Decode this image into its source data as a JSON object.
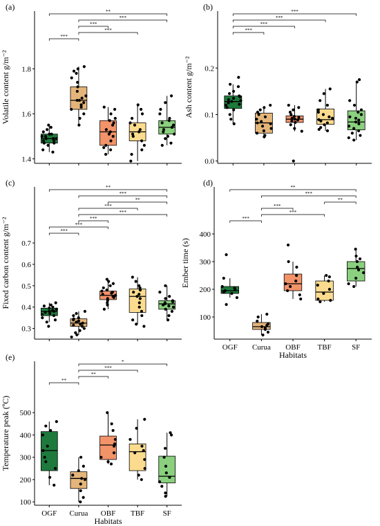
{
  "colors": {
    "OGF": "#1e7a3c",
    "Curua": "#e4b57a",
    "OBF": "#f2936a",
    "TBF": "#fbdc8f",
    "SF": "#8ad07e"
  },
  "chart_data": [
    {
      "type": "box",
      "panel_label": "(a)",
      "ylabel": "Volatile content g/m⁻²",
      "xlabel": "",
      "categories": [
        "OGF",
        "Curua",
        "OBF",
        "TBF",
        "SF"
      ],
      "show_x_tick_labels": false,
      "ylim": [
        1.38,
        1.9
      ],
      "yticks": [
        "1.4",
        "1.6",
        "1.8"
      ],
      "boxes": [
        {
          "min": 1.43,
          "q1": 1.47,
          "median": 1.49,
          "q3": 1.51,
          "max": 1.55
        },
        {
          "min": 1.55,
          "q1": 1.62,
          "median": 1.66,
          "q3": 1.72,
          "max": 1.81
        },
        {
          "min": 1.42,
          "q1": 1.46,
          "median": 1.52,
          "q3": 1.57,
          "max": 1.63
        },
        {
          "min": 1.39,
          "q1": 1.48,
          "median": 1.52,
          "q3": 1.56,
          "max": 1.64
        },
        {
          "min": 1.46,
          "q1": 1.51,
          "median": 1.54,
          "q3": 1.57,
          "max": 1.68
        }
      ],
      "points": [
        [
          1.43,
          1.44,
          1.46,
          1.47,
          1.47,
          1.48,
          1.48,
          1.49,
          1.49,
          1.49,
          1.5,
          1.5,
          1.51,
          1.51,
          1.52,
          1.53,
          1.54,
          1.55
        ],
        [
          1.55,
          1.58,
          1.6,
          1.62,
          1.63,
          1.64,
          1.65,
          1.66,
          1.66,
          1.67,
          1.68,
          1.7,
          1.72,
          1.74,
          1.76,
          1.78,
          1.79,
          1.8,
          1.81
        ],
        [
          1.42,
          1.44,
          1.45,
          1.46,
          1.48,
          1.5,
          1.51,
          1.52,
          1.53,
          1.55,
          1.56,
          1.57,
          1.58,
          1.6,
          1.62,
          1.63
        ],
        [
          1.39,
          1.42,
          1.44,
          1.46,
          1.48,
          1.5,
          1.51,
          1.52,
          1.53,
          1.55,
          1.56,
          1.58,
          1.6,
          1.62,
          1.64
        ],
        [
          1.46,
          1.47,
          1.49,
          1.5,
          1.51,
          1.52,
          1.53,
          1.54,
          1.55,
          1.56,
          1.57,
          1.58,
          1.6,
          1.62,
          1.65,
          1.68
        ]
      ],
      "comparisons": [
        {
          "from": "OGF",
          "to": "SF",
          "label": "**"
        },
        {
          "from": "Curua",
          "to": "SF",
          "label": "***"
        },
        {
          "from": "Curua",
          "to": "OBF",
          "label": "***"
        },
        {
          "from": "Curua",
          "to": "TBF",
          "label": "***"
        },
        {
          "from": "OGF",
          "to": "Curua",
          "label": "***"
        }
      ]
    },
    {
      "type": "box",
      "panel_label": "(b)",
      "ylabel": "Ash content g/m⁻²",
      "xlabel": "",
      "categories": [
        "OGF",
        "Curua",
        "OBF",
        "TBF",
        "SF"
      ],
      "show_x_tick_labels": false,
      "ylim": [
        -0.005,
        0.26
      ],
      "yticks": [
        "0.0",
        "0.1",
        "0.2"
      ],
      "boxes": [
        {
          "min": 0.08,
          "q1": 0.113,
          "median": 0.128,
          "q3": 0.14,
          "max": 0.165
        },
        {
          "min": 0.052,
          "q1": 0.06,
          "median": 0.082,
          "q3": 0.103,
          "max": 0.115
        },
        {
          "min": 0.064,
          "q1": 0.083,
          "median": 0.09,
          "q3": 0.097,
          "max": 0.12
        },
        {
          "min": 0.065,
          "q1": 0.079,
          "median": 0.089,
          "q3": 0.112,
          "max": 0.155
        },
        {
          "min": 0.045,
          "q1": 0.067,
          "median": 0.084,
          "q3": 0.108,
          "max": 0.17
        }
      ],
      "points": [
        [
          0.08,
          0.09,
          0.1,
          0.11,
          0.115,
          0.12,
          0.122,
          0.125,
          0.128,
          0.13,
          0.132,
          0.135,
          0.138,
          0.14,
          0.145,
          0.15,
          0.16,
          0.165,
          0.18
        ],
        [
          0.052,
          0.055,
          0.06,
          0.065,
          0.07,
          0.075,
          0.08,
          0.082,
          0.085,
          0.09,
          0.095,
          0.1,
          0.105,
          0.11,
          0.115,
          0.12
        ],
        [
          0.0,
          0.064,
          0.07,
          0.078,
          0.083,
          0.086,
          0.088,
          0.09,
          0.092,
          0.094,
          0.096,
          0.1,
          0.105,
          0.11,
          0.115,
          0.12
        ],
        [
          0.065,
          0.068,
          0.072,
          0.078,
          0.082,
          0.086,
          0.089,
          0.092,
          0.095,
          0.1,
          0.105,
          0.11,
          0.12,
          0.13,
          0.145,
          0.155
        ],
        [
          0.045,
          0.05,
          0.055,
          0.06,
          0.065,
          0.07,
          0.075,
          0.08,
          0.084,
          0.088,
          0.092,
          0.095,
          0.1,
          0.105,
          0.11,
          0.12,
          0.13,
          0.17,
          0.175
        ]
      ],
      "comparisons": [
        {
          "from": "OGF",
          "to": "SF",
          "label": "***"
        },
        {
          "from": "OGF",
          "to": "TBF",
          "label": "***"
        },
        {
          "from": "OGF",
          "to": "OBF",
          "label": "***"
        },
        {
          "from": "OGF",
          "to": "Curua",
          "label": "***"
        }
      ]
    },
    {
      "type": "box",
      "panel_label": "(c)",
      "ylabel": "Fixed carbon content g/m⁻²",
      "xlabel": "",
      "categories": [
        "OGF",
        "Curua",
        "OBF",
        "TBF",
        "SF"
      ],
      "show_x_tick_labels": false,
      "ylim": [
        0.25,
        0.71
      ],
      "yticks": [
        "0.3",
        "0.4",
        "0.5",
        "0.6",
        "0.7"
      ],
      "boxes": [
        {
          "min": 0.33,
          "q1": 0.36,
          "median": 0.38,
          "q3": 0.395,
          "max": 0.42
        },
        {
          "min": 0.27,
          "q1": 0.31,
          "median": 0.325,
          "q3": 0.345,
          "max": 0.38
        },
        {
          "min": 0.39,
          "q1": 0.435,
          "median": 0.455,
          "q3": 0.475,
          "max": 0.53
        },
        {
          "min": 0.32,
          "q1": 0.375,
          "median": 0.45,
          "q3": 0.485,
          "max": 0.54
        },
        {
          "min": 0.34,
          "q1": 0.39,
          "median": 0.415,
          "q3": 0.43,
          "max": 0.5
        }
      ],
      "points": [
        [
          0.31,
          0.33,
          0.34,
          0.35,
          0.36,
          0.365,
          0.37,
          0.375,
          0.38,
          0.38,
          0.385,
          0.39,
          0.395,
          0.4,
          0.405,
          0.41,
          0.42
        ],
        [
          0.26,
          0.27,
          0.28,
          0.29,
          0.3,
          0.31,
          0.315,
          0.32,
          0.325,
          0.33,
          0.335,
          0.34,
          0.345,
          0.35,
          0.36,
          0.37,
          0.38
        ],
        [
          0.39,
          0.41,
          0.42,
          0.43,
          0.44,
          0.445,
          0.45,
          0.455,
          0.46,
          0.465,
          0.47,
          0.475,
          0.48,
          0.49,
          0.5,
          0.51,
          0.52,
          0.53
        ],
        [
          0.31,
          0.32,
          0.34,
          0.36,
          0.38,
          0.4,
          0.42,
          0.44,
          0.45,
          0.46,
          0.47,
          0.48,
          0.49,
          0.5,
          0.52,
          0.54
        ],
        [
          0.34,
          0.36,
          0.38,
          0.39,
          0.4,
          0.405,
          0.41,
          0.415,
          0.42,
          0.425,
          0.43,
          0.44,
          0.45,
          0.47,
          0.5
        ]
      ],
      "comparisons": [
        {
          "from": "OGF",
          "to": "SF",
          "label": "**"
        },
        {
          "from": "Curua",
          "to": "SF",
          "label": "***"
        },
        {
          "from": "OBF",
          "to": "SF",
          "label": "**"
        },
        {
          "from": "Curua",
          "to": "TBF",
          "label": "***"
        },
        {
          "from": "Curua",
          "to": "SF",
          "label": "***"
        },
        {
          "from": "Curua",
          "to": "OBF",
          "label": "***"
        },
        {
          "from": "OGF",
          "to": "OBF",
          "label": "***"
        },
        {
          "from": "OGF",
          "to": "Curua",
          "label": "***"
        }
      ]
    },
    {
      "type": "box",
      "panel_label": "(d)",
      "ylabel": "Ember time (s)",
      "xlabel": "Habitats",
      "categories": [
        "OGF",
        "Curua",
        "OBF",
        "TBF",
        "SF"
      ],
      "show_x_tick_labels": true,
      "ylim": [
        20,
        420
      ],
      "yticks": [
        "100",
        "200",
        "300",
        "400"
      ],
      "boxes": [
        {
          "min": 170,
          "q1": 185,
          "median": 195,
          "q3": 210,
          "max": 240
        },
        {
          "min": 35,
          "q1": 55,
          "median": 65,
          "q3": 80,
          "max": 110
        },
        {
          "min": 165,
          "q1": 195,
          "median": 220,
          "q3": 255,
          "max": 300
        },
        {
          "min": 155,
          "q1": 160,
          "median": 190,
          "q3": 230,
          "max": 250
        },
        {
          "min": 210,
          "q1": 230,
          "median": 275,
          "q3": 300,
          "max": 345
        }
      ],
      "points": [
        [
          145,
          170,
          185,
          190,
          195,
          200,
          205,
          210,
          240,
          325
        ],
        [
          35,
          45,
          55,
          60,
          65,
          70,
          75,
          85,
          100,
          110
        ],
        [
          165,
          180,
          195,
          210,
          220,
          230,
          250,
          280,
          300,
          360
        ],
        [
          155,
          160,
          165,
          185,
          200,
          215,
          230,
          245,
          250
        ],
        [
          210,
          220,
          240,
          260,
          280,
          300,
          320,
          345,
          310,
          270
        ]
      ],
      "comparisons": [
        {
          "from": "OGF",
          "to": "SF",
          "label": "**"
        },
        {
          "from": "Curua",
          "to": "SF",
          "label": "***"
        },
        {
          "from": "TBF",
          "to": "SF",
          "label": "**"
        },
        {
          "from": "Curua",
          "to": "OBF",
          "label": "***"
        },
        {
          "from": "Curua",
          "to": "TBF",
          "label": "***"
        },
        {
          "from": "OGF",
          "to": "Curua",
          "label": "***"
        }
      ]
    },
    {
      "type": "box",
      "panel_label": "(e)",
      "ylabel": "Temperature peak (ºC)",
      "xlabel": "Habitats",
      "categories": [
        "OGF",
        "Curua",
        "OBF",
        "TBF",
        "SF"
      ],
      "show_x_tick_labels": true,
      "ylim": [
        85,
        600
      ],
      "yticks": [
        "100",
        "200",
        "300",
        "400",
        "500"
      ],
      "boxes": [
        {
          "min": 175,
          "q1": 240,
          "median": 330,
          "q3": 415,
          "max": 460
        },
        {
          "min": 100,
          "q1": 160,
          "median": 205,
          "q3": 235,
          "max": 300
        },
        {
          "min": 270,
          "q1": 290,
          "median": 355,
          "q3": 395,
          "max": 500
        },
        {
          "min": 200,
          "q1": 240,
          "median": 325,
          "q3": 360,
          "max": 470
        },
        {
          "min": 125,
          "q1": 185,
          "median": 215,
          "q3": 305,
          "max": 410
        }
      ],
      "points": [
        [
          175,
          210,
          250,
          280,
          300,
          330,
          350,
          400,
          420,
          440,
          460
        ],
        [
          100,
          120,
          150,
          180,
          200,
          205,
          220,
          240,
          260,
          300
        ],
        [
          270,
          280,
          300,
          320,
          350,
          360,
          380,
          420,
          450,
          500
        ],
        [
          200,
          220,
          250,
          290,
          320,
          330,
          350,
          380,
          430,
          470
        ],
        [
          125,
          140,
          170,
          190,
          210,
          230,
          260,
          300,
          340,
          400,
          410
        ]
      ],
      "comparisons": [
        {
          "from": "Curua",
          "to": "SF",
          "label": "*"
        },
        {
          "from": "Curua",
          "to": "TBF",
          "label": "***"
        },
        {
          "from": "Curua",
          "to": "OBF",
          "label": "**"
        },
        {
          "from": "OGF",
          "to": "Curua",
          "label": "**"
        }
      ]
    }
  ]
}
